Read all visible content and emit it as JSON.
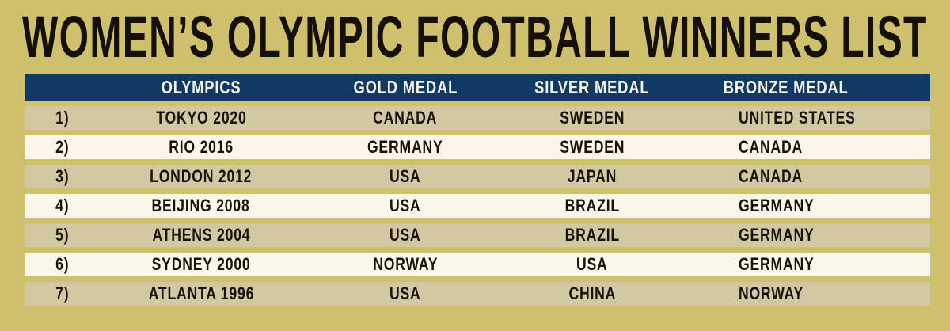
{
  "title": "WOMEN’S OLYMPIC FOOTBALL WINNERS LIST",
  "colors": {
    "background": "#cfc06d",
    "header_bar": "#113a63",
    "header_text": "#f4f2ea",
    "row_light": "#faf6ea",
    "row_dark": "#d2c9a2",
    "body_text": "#18120c",
    "title_text": "#15100a"
  },
  "chart_data": {
    "type": "table",
    "title": "WOMEN’S OLYMPIC FOOTBALL WINNERS LIST",
    "columns": [
      "OLYMPICS",
      "GOLD MEDAL",
      "SILVER MEDAL",
      "BRONZE MEDAL"
    ],
    "rows": [
      [
        "1)",
        "TOKYO 2020",
        "CANADA",
        "SWEDEN",
        "UNITED STATES"
      ],
      [
        "2)",
        "RIO 2016",
        "GERMANY",
        "SWEDEN",
        "CANADA"
      ],
      [
        "3)",
        "LONDON 2012",
        "USA",
        "JAPAN",
        "CANADA"
      ],
      [
        "4)",
        "BEIJING 2008",
        "USA",
        "BRAZIL",
        "GERMANY"
      ],
      [
        "5)",
        "ATHENS 2004",
        "USA",
        "BRAZIL",
        "GERMANY"
      ],
      [
        "6)",
        "SYDNEY 2000",
        "NORWAY",
        "USA",
        "GERMANY"
      ],
      [
        "7)",
        "ATLANTA 1996",
        "USA",
        "CHINA",
        "NORWAY"
      ]
    ]
  }
}
